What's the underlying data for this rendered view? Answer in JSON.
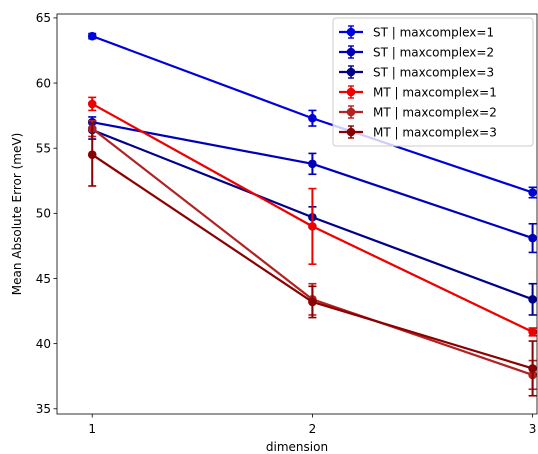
{
  "chart_data": {
    "type": "line",
    "xlabel": "dimension",
    "ylabel": "Mean Absolute Error (meV)",
    "x": [
      1,
      2,
      3
    ],
    "xticks": [
      "1",
      "2",
      "3"
    ],
    "xlim": [
      0.84,
      3.02
    ],
    "ylim": [
      34.6,
      65.3
    ],
    "yticks": [
      35,
      40,
      45,
      50,
      55,
      60,
      65
    ],
    "ytick_labels": [
      "35",
      "40",
      "45",
      "50",
      "55",
      "60",
      "65"
    ],
    "legend_placement": "top-right",
    "grid": false,
    "series": [
      {
        "name": "ST | maxcomplex=1",
        "color": "#0000dd",
        "values": [
          63.6,
          57.3,
          51.6
        ],
        "err": [
          0.2,
          0.6,
          0.4
        ]
      },
      {
        "name": "ST | maxcomplex=2",
        "color": "#0000bb",
        "values": [
          57.0,
          53.8,
          48.1
        ],
        "err": [
          0.4,
          0.8,
          1.1
        ]
      },
      {
        "name": "ST | maxcomplex=3",
        "color": "#00008b",
        "values": [
          56.4,
          49.7,
          43.4
        ],
        "err": [
          0.7,
          0.8,
          1.2
        ]
      },
      {
        "name": "MT | maxcomplex=1",
        "color": "#ee0000",
        "values": [
          58.4,
          49.0,
          40.9
        ],
        "err": [
          0.5,
          2.9,
          0.3
        ]
      },
      {
        "name": "MT | maxcomplex=2",
        "color": "#b22222",
        "values": [
          56.5,
          43.4,
          37.6
        ],
        "err": [
          0.6,
          1.2,
          1.1
        ]
      },
      {
        "name": "MT | maxcomplex=3",
        "color": "#8b0000",
        "values": [
          54.5,
          43.2,
          38.1
        ],
        "err": [
          2.4,
          1.2,
          2.1
        ]
      }
    ]
  }
}
